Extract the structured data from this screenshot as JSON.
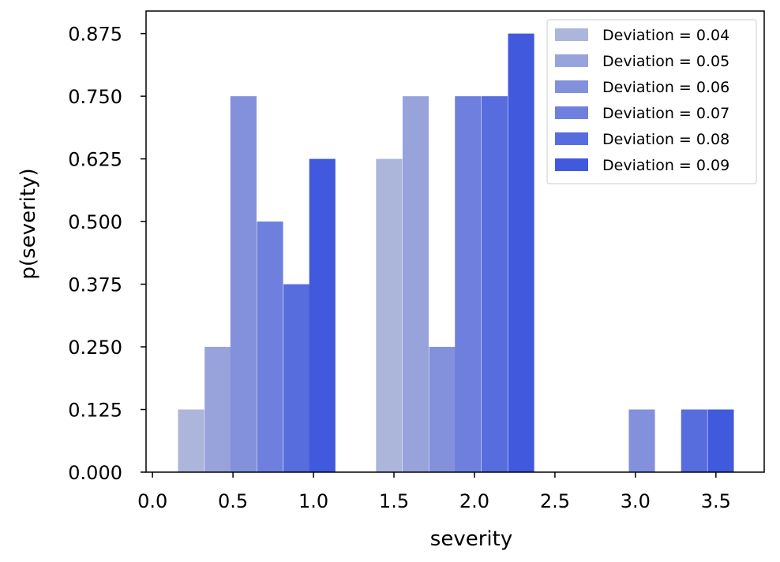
{
  "chart_data": {
    "type": "bar",
    "title": "",
    "xlabel": "severity",
    "ylabel": "p(severity)",
    "xlim": [
      -0.04,
      3.8
    ],
    "ylim": [
      0,
      0.92
    ],
    "xticks": [
      0.0,
      0.5,
      1.0,
      1.5,
      2.0,
      2.5,
      3.0,
      3.5
    ],
    "xtick_labels": [
      "0.0",
      "0.5",
      "1.0",
      "1.5",
      "2.0",
      "2.5",
      "3.0",
      "3.5"
    ],
    "yticks": [
      0.0,
      0.125,
      0.25,
      0.375,
      0.5,
      0.625,
      0.75,
      0.875
    ],
    "ytick_labels": [
      "0.000",
      "0.125",
      "0.250",
      "0.375",
      "0.500",
      "0.625",
      "0.750",
      "0.875"
    ],
    "bar_width": 0.1625,
    "legend_position": "top-right",
    "grid": false,
    "series": [
      {
        "name": "Deviation = 0.04",
        "color": "#acb5da",
        "points": [
          {
            "x": 0.24,
            "y": 0.125
          },
          {
            "x": 1.47,
            "y": 0.625
          }
        ]
      },
      {
        "name": "Deviation = 0.05",
        "color": "#98a3dc",
        "points": [
          {
            "x": 0.405,
            "y": 0.25
          },
          {
            "x": 1.635,
            "y": 0.75
          }
        ]
      },
      {
        "name": "Deviation = 0.06",
        "color": "#8391dc",
        "points": [
          {
            "x": 0.565,
            "y": 0.75
          },
          {
            "x": 1.8,
            "y": 0.25
          },
          {
            "x": 3.04,
            "y": 0.125
          }
        ]
      },
      {
        "name": "Deviation = 0.07",
        "color": "#6e7fdd",
        "points": [
          {
            "x": 0.73,
            "y": 0.5
          },
          {
            "x": 1.96,
            "y": 0.75
          }
        ]
      },
      {
        "name": "Deviation = 0.08",
        "color": "#576ddd",
        "points": [
          {
            "x": 0.895,
            "y": 0.375
          },
          {
            "x": 2.125,
            "y": 0.75
          },
          {
            "x": 3.365,
            "y": 0.125
          }
        ]
      },
      {
        "name": "Deviation = 0.09",
        "color": "#4159dc",
        "points": [
          {
            "x": 1.055,
            "y": 0.625
          },
          {
            "x": 2.29,
            "y": 0.875
          },
          {
            "x": 3.53,
            "y": 0.125
          }
        ]
      }
    ]
  }
}
